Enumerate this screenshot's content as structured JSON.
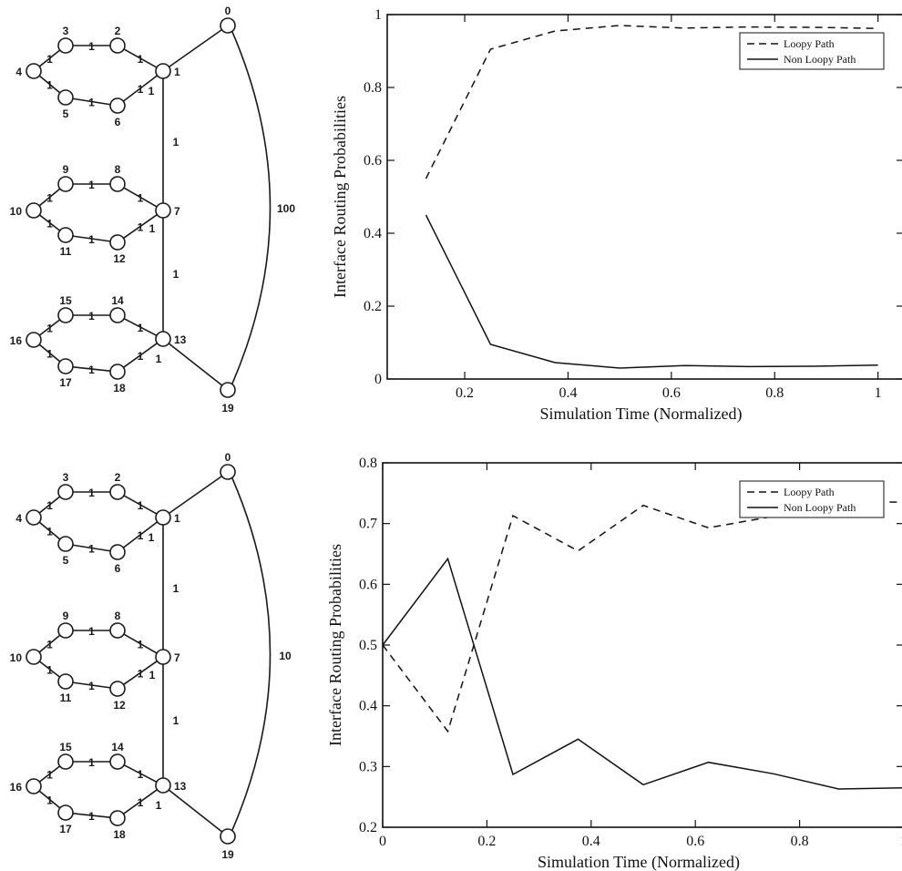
{
  "graphs": [
    {
      "nodes": [
        "0",
        "1",
        "2",
        "3",
        "4",
        "5",
        "6",
        "7",
        "8",
        "9",
        "10",
        "11",
        "12",
        "13",
        "14",
        "15",
        "16",
        "17",
        "18",
        "19"
      ],
      "edge_weights": {
        "ring": "1",
        "spine_1_7": "1",
        "spine_7_13": "1",
        "long_edge": "100",
        "attach_1": "1",
        "attach_7": "1",
        "attach_13": "1"
      }
    },
    {
      "nodes": [
        "0",
        "1",
        "2",
        "3",
        "4",
        "5",
        "6",
        "7",
        "8",
        "9",
        "10",
        "11",
        "12",
        "13",
        "14",
        "15",
        "16",
        "17",
        "18",
        "19"
      ],
      "edge_weights": {
        "ring": "1",
        "spine_1_7": "1",
        "spine_7_13": "1",
        "long_edge": "10",
        "attach_1": "1",
        "attach_7": "1",
        "attach_13": "1"
      }
    }
  ],
  "chart_data": [
    {
      "type": "line",
      "xlabel": "Simulation Time (Normalized)",
      "ylabel": "Interface Routing Probabilities",
      "xlim": [
        0.05,
        1.05
      ],
      "ylim": [
        0,
        1
      ],
      "xticks": [
        "0.2",
        "0.4",
        "0.6",
        "0.8",
        "1"
      ],
      "xtick_values": [
        0.2,
        0.4,
        0.6,
        0.8,
        1.0
      ],
      "yticks": [
        "0",
        "0.2",
        "0.4",
        "0.6",
        "0.8",
        "1"
      ],
      "ytick_values": [
        0,
        0.2,
        0.4,
        0.6,
        0.8,
        1.0
      ],
      "legend_position": "top-right",
      "series": [
        {
          "name": "Loopy Path",
          "style": "dashed",
          "x": [
            0.125,
            0.25,
            0.375,
            0.5,
            0.625,
            0.75,
            0.875,
            1.0
          ],
          "y": [
            0.55,
            0.905,
            0.955,
            0.97,
            0.963,
            0.966,
            0.965,
            0.962
          ]
        },
        {
          "name": "Non Loopy Path",
          "style": "solid",
          "x": [
            0.125,
            0.25,
            0.375,
            0.5,
            0.625,
            0.75,
            0.875,
            1.0
          ],
          "y": [
            0.45,
            0.095,
            0.045,
            0.03,
            0.037,
            0.034,
            0.035,
            0.038
          ]
        }
      ]
    },
    {
      "type": "line",
      "xlabel": "Simulation Time (Normalized)",
      "ylabel": "Interface Routing Probabilities",
      "xlim": [
        0,
        1
      ],
      "ylim": [
        0.2,
        0.8
      ],
      "xticks": [
        "0",
        "0.2",
        "0.4",
        "0.6",
        "0.8",
        "1"
      ],
      "xtick_values": [
        0,
        0.2,
        0.4,
        0.6,
        0.8,
        1.0
      ],
      "yticks": [
        "0.2",
        "0.3",
        "0.4",
        "0.5",
        "0.6",
        "0.7",
        "0.8"
      ],
      "ytick_values": [
        0.2,
        0.3,
        0.4,
        0.5,
        0.6,
        0.7,
        0.8
      ],
      "legend_position": "top-right",
      "series": [
        {
          "name": "Loopy Path",
          "style": "dashed",
          "x": [
            0,
            0.125,
            0.25,
            0.375,
            0.5,
            0.625,
            0.75,
            0.875,
            1.0
          ],
          "y": [
            0.5,
            0.358,
            0.713,
            0.655,
            0.73,
            0.693,
            0.712,
            0.737,
            0.735
          ]
        },
        {
          "name": "Non Loopy Path",
          "style": "solid",
          "x": [
            0,
            0.125,
            0.25,
            0.375,
            0.5,
            0.625,
            0.75,
            0.875,
            1.0
          ],
          "y": [
            0.5,
            0.642,
            0.287,
            0.345,
            0.27,
            0.307,
            0.288,
            0.263,
            0.265
          ]
        }
      ]
    }
  ]
}
